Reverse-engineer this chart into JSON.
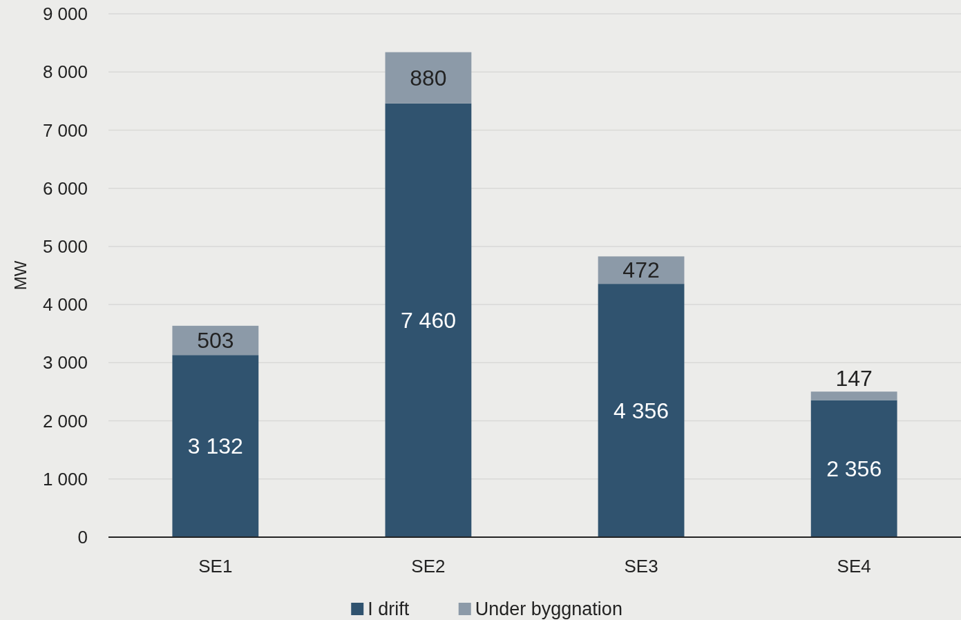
{
  "chart_data": {
    "type": "bar",
    "stacked": true,
    "ylabel": "MW",
    "categories": [
      "SE1",
      "SE2",
      "SE3",
      "SE4"
    ],
    "series": [
      {
        "name": "I drift",
        "color": "#30536f",
        "values": [
          3132,
          7460,
          4356,
          2356
        ],
        "value_labels": [
          "3 132",
          "7 460",
          "4 356",
          "2 356"
        ]
      },
      {
        "name": "Under byggnation",
        "color": "#8c9aa8",
        "values": [
          503,
          880,
          472,
          147
        ],
        "value_labels": [
          "503",
          "880",
          "472",
          "147"
        ]
      }
    ],
    "ylim": [
      0,
      9000
    ],
    "yticks": [
      0,
      {
        "value": 1000,
        "label": "1 000"
      },
      {
        "value": 2000,
        "label": "2 000"
      },
      {
        "value": 3000,
        "label": "3 000"
      },
      {
        "value": 4000,
        "label": "4 000"
      },
      {
        "value": 5000,
        "label": "5 000"
      },
      {
        "value": 6000,
        "label": "6 000"
      },
      {
        "value": 7000,
        "label": "7 000"
      },
      {
        "value": 8000,
        "label": "8 000"
      },
      {
        "value": 9000,
        "label": "9 000"
      }
    ],
    "grid": "y",
    "legend": "bottom"
  }
}
